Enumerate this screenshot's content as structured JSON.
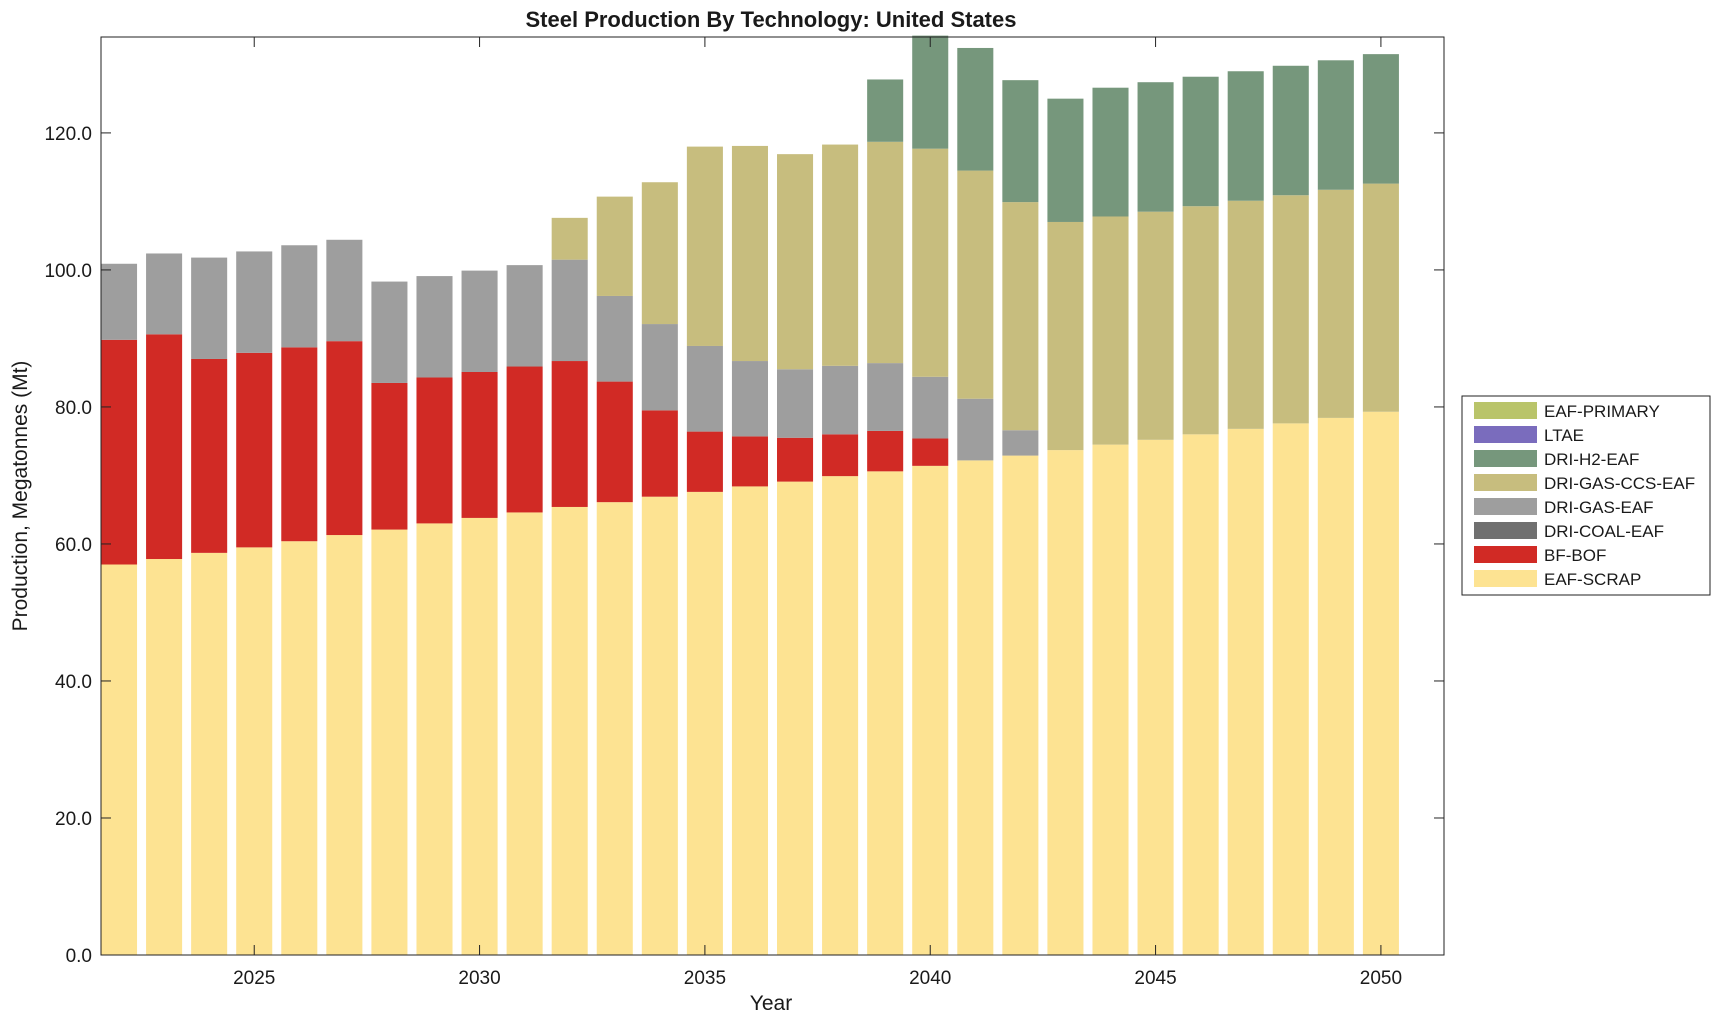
{
  "chart_data": {
    "type": "bar",
    "stacked": true,
    "title": "Steel Production By Technology: United States",
    "xlabel": "Year",
    "ylabel": "Production, Megatonnes (Mt)",
    "xlim": [
      2021.6,
      2051.4
    ],
    "ylim": [
      0,
      134
    ],
    "x_ticks": [
      2025,
      2030,
      2035,
      2040,
      2045,
      2050
    ],
    "x_tick_labels": [
      "2025",
      "2030",
      "2035",
      "2040",
      "2045",
      "2050"
    ],
    "y_ticks": [
      0,
      20,
      40,
      60,
      80,
      100,
      120
    ],
    "y_tick_labels": [
      "0.0",
      "20.0",
      "40.0",
      "60.0",
      "80.0",
      "100.0",
      "120.0"
    ],
    "grid": false,
    "legend_position": "outside-right",
    "x": [
      2022,
      2023,
      2024,
      2025,
      2026,
      2027,
      2028,
      2029,
      2030,
      2031,
      2032,
      2033,
      2034,
      2035,
      2036,
      2037,
      2038,
      2039,
      2040,
      2041,
      2042,
      2043,
      2044,
      2045,
      2046,
      2047,
      2048,
      2049,
      2050
    ],
    "series": [
      {
        "name": "EAF-SCRAP",
        "color": "#fde392",
        "values": [
          57.0,
          57.8,
          58.7,
          59.5,
          60.4,
          61.3,
          62.1,
          63.0,
          63.8,
          64.6,
          65.4,
          66.1,
          66.9,
          67.6,
          68.4,
          69.1,
          69.9,
          70.6,
          71.4,
          72.2,
          72.9,
          73.7,
          74.5,
          75.2,
          76.0,
          76.8,
          77.6,
          78.4,
          79.3
        ]
      },
      {
        "name": "BF-BOF",
        "color": "#d12a25",
        "values": [
          32.8,
          32.8,
          28.3,
          28.4,
          28.3,
          28.3,
          21.4,
          21.3,
          21.3,
          21.3,
          21.3,
          17.6,
          12.6,
          8.8,
          7.3,
          6.4,
          6.1,
          5.9,
          4.0,
          0,
          0,
          0,
          0,
          0,
          0,
          0,
          0,
          0,
          0
        ]
      },
      {
        "name": "DRI-COAL-EAF",
        "color": "#707070",
        "values": [
          0,
          0,
          0,
          0,
          0,
          0,
          0,
          0,
          0,
          0,
          0,
          0,
          0,
          0,
          0,
          0,
          0,
          0,
          0,
          0,
          0,
          0,
          0,
          0,
          0,
          0,
          0,
          0,
          0
        ]
      },
      {
        "name": "DRI-GAS-EAF",
        "color": "#9e9e9e",
        "values": [
          11.1,
          11.8,
          14.8,
          14.8,
          14.9,
          14.8,
          14.8,
          14.8,
          14.8,
          14.8,
          14.8,
          12.5,
          12.6,
          12.5,
          11.0,
          10.0,
          10.0,
          9.9,
          9.0,
          9.0,
          3.7,
          0,
          0,
          0,
          0,
          0,
          0,
          0,
          0
        ]
      },
      {
        "name": "DRI-GAS-CCS-EAF",
        "color": "#c7bd7e",
        "values": [
          0,
          0,
          0,
          0,
          0,
          0,
          0,
          0,
          0,
          0,
          6.1,
          14.5,
          20.7,
          29.1,
          31.4,
          31.4,
          32.3,
          32.3,
          33.3,
          33.3,
          33.3,
          33.3,
          33.3,
          33.3,
          33.3,
          33.3,
          33.3,
          33.3,
          33.3
        ]
      },
      {
        "name": "DRI-H2-EAF",
        "color": "#76977c",
        "values": [
          0,
          0,
          0,
          0,
          0,
          0,
          0,
          0,
          0,
          0,
          0,
          0,
          0,
          0,
          0,
          0,
          0,
          9.1,
          16.5,
          17.9,
          17.8,
          18.0,
          18.8,
          18.9,
          18.9,
          18.9,
          18.9,
          18.9,
          18.9
        ]
      },
      {
        "name": "LTAE",
        "color": "#7a6cbd",
        "values": [
          0,
          0,
          0,
          0,
          0,
          0,
          0,
          0,
          0,
          0,
          0,
          0,
          0,
          0,
          0,
          0,
          0,
          0,
          0,
          0,
          0,
          0,
          0,
          0,
          0,
          0,
          0,
          0,
          0
        ]
      },
      {
        "name": "EAF-PRIMARY",
        "color": "#b9c46a",
        "values": [
          0,
          0,
          0,
          0,
          0,
          0,
          0,
          0,
          0,
          0,
          0,
          0,
          0,
          0,
          0,
          0,
          0,
          0,
          0,
          0,
          0,
          0,
          0,
          0,
          0,
          0,
          0,
          0,
          0
        ]
      }
    ],
    "legend_order": [
      "EAF-PRIMARY",
      "LTAE",
      "DRI-H2-EAF",
      "DRI-GAS-CCS-EAF",
      "DRI-GAS-EAF",
      "DRI-COAL-EAF",
      "BF-BOF",
      "EAF-SCRAP"
    ]
  }
}
